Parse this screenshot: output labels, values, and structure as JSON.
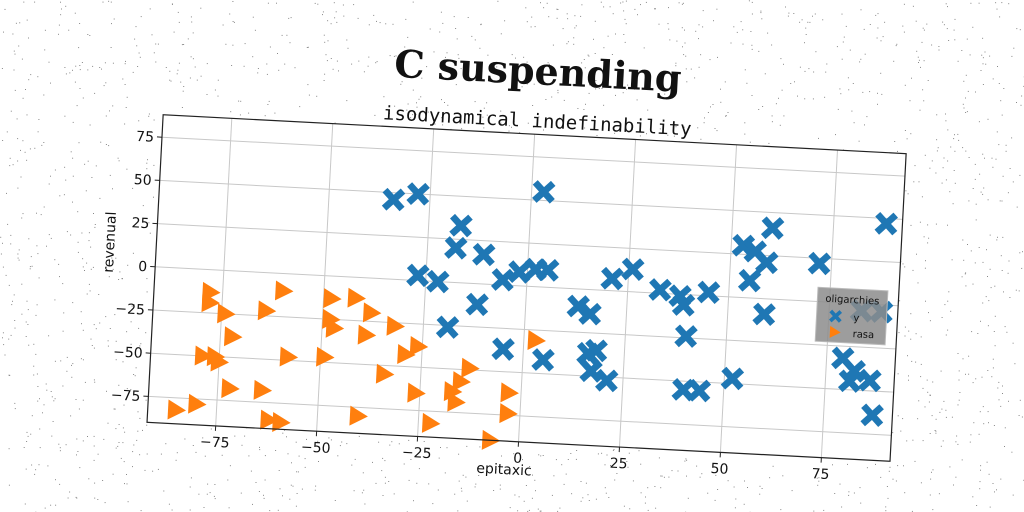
{
  "chart_data": {
    "type": "scatter",
    "title": "C suspending",
    "subtitle": "isodynamical indefinability",
    "xlabel": "epitaxic",
    "ylabel": "revenual",
    "xlim": [
      -92,
      92
    ],
    "ylim": [
      -90,
      88
    ],
    "xticks": [
      -75,
      -50,
      -25,
      0,
      25,
      50,
      75
    ],
    "yticks": [
      -75,
      -50,
      -25,
      0,
      25,
      50,
      75
    ],
    "grid": true,
    "legend": {
      "title": "oligarchies",
      "placement": "right"
    },
    "series": [
      {
        "name": "y",
        "marker": "x",
        "color": "#1f77b4",
        "points": [
          [
            -34,
            46
          ],
          [
            -28,
            50
          ],
          [
            -17,
            33
          ],
          [
            -18,
            20
          ],
          [
            -11,
            17
          ],
          [
            -27,
            3
          ],
          [
            -22,
            0
          ],
          [
            -12,
            -12
          ],
          [
            -19,
            -26
          ],
          [
            -5,
            -37
          ],
          [
            -6,
            3
          ],
          [
            -2,
            8
          ],
          [
            3,
            55
          ],
          [
            2,
            10
          ],
          [
            5,
            10
          ],
          [
            5,
            -42
          ],
          [
            13,
            -10
          ],
          [
            16,
            -14
          ],
          [
            16,
            -37
          ],
          [
            18,
            -35
          ],
          [
            17,
            -47
          ],
          [
            21,
            -52
          ],
          [
            21,
            7
          ],
          [
            26,
            13
          ],
          [
            33,
            2
          ],
          [
            38,
            -1
          ],
          [
            39,
            -6
          ],
          [
            40,
            -24
          ],
          [
            40,
            -55
          ],
          [
            44,
            -55
          ],
          [
            45,
            2
          ],
          [
            52,
            -47
          ],
          [
            53,
            30
          ],
          [
            56,
            27
          ],
          [
            55,
            10
          ],
          [
            60,
            41
          ],
          [
            59,
            21
          ],
          [
            59,
            -9
          ],
          [
            72,
            22
          ],
          [
            79,
            -32
          ],
          [
            81,
            -45
          ],
          [
            82,
            -39
          ],
          [
            83,
            -4
          ],
          [
            86,
            -44
          ],
          [
            88,
            -4
          ],
          [
            87,
            -64
          ],
          [
            88,
            47
          ]
        ]
      },
      {
        "name": "rasa",
        "marker": "triangle-right",
        "color": "#ff7f0e",
        "points": [
          [
            -78,
            -13
          ],
          [
            -78,
            -19
          ],
          [
            -74,
            -25
          ],
          [
            -72,
            -38
          ],
          [
            -79,
            -50
          ],
          [
            -76,
            -50
          ],
          [
            -75,
            -53
          ],
          [
            -72,
            -68
          ],
          [
            -85,
            -82
          ],
          [
            -80,
            -78
          ],
          [
            -60,
            -10
          ],
          [
            -64,
            -22
          ],
          [
            -58,
            -48
          ],
          [
            -64,
            -68
          ],
          [
            -62,
            -85
          ],
          [
            -59,
            -86
          ],
          [
            -48,
            -13
          ],
          [
            -48,
            -25
          ],
          [
            -47,
            -30
          ],
          [
            -49,
            -47
          ],
          [
            -42,
            -12
          ],
          [
            -38,
            -20
          ],
          [
            -39,
            -33
          ],
          [
            -32,
            -27
          ],
          [
            -40,
            -80
          ],
          [
            -34,
            -55
          ],
          [
            -29,
            -43
          ],
          [
            -26,
            -38
          ],
          [
            -26,
            -65
          ],
          [
            -22,
            -82
          ],
          [
            -13,
            -49
          ],
          [
            -15,
            -57
          ],
          [
            -17,
            -63
          ],
          [
            -16,
            -69
          ],
          [
            -3,
            -62
          ],
          [
            -3,
            -74
          ],
          [
            -7,
            -90
          ],
          [
            3,
            -31
          ]
        ]
      }
    ]
  }
}
